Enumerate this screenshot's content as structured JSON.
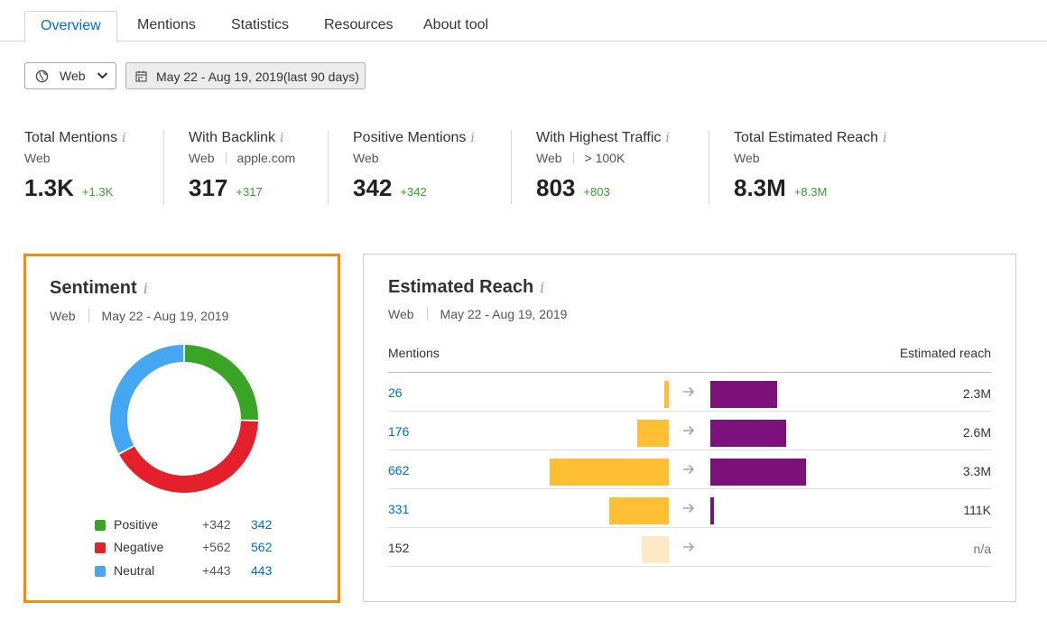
{
  "tabs": [
    {
      "label": "Overview",
      "active": true
    },
    {
      "label": "Mentions",
      "active": false
    },
    {
      "label": "Statistics",
      "active": false
    },
    {
      "label": "Resources",
      "active": false
    },
    {
      "label": "About tool",
      "active": false
    }
  ],
  "filters": {
    "source_value": "Web",
    "date_range": "May 22 - Aug 19, 2019(last 90 days)"
  },
  "stats": [
    {
      "title": "Total Mentions",
      "sub": "Web",
      "sub2": "",
      "value": "1.3K",
      "delta": "+1.3K"
    },
    {
      "title": "With Backlink",
      "sub": "Web",
      "sub2": "apple.com",
      "value": "317",
      "delta": "+317"
    },
    {
      "title": "Positive Mentions",
      "sub": "Web",
      "sub2": "",
      "value": "342",
      "delta": "+342"
    },
    {
      "title": "With Highest Traffic",
      "sub": "Web",
      "sub2": "> 100K",
      "value": "803",
      "delta": "+803"
    },
    {
      "title": "Total Estimated Reach",
      "sub": "Web",
      "sub2": "",
      "value": "8.3M",
      "delta": "+8.3M"
    }
  ],
  "info_glyph": "i",
  "sentiment": {
    "title": "Sentiment",
    "source": "Web",
    "date": "May 22 - Aug 19, 2019",
    "items": [
      {
        "name": "Positive",
        "delta": "+342",
        "count": "342",
        "value": 342,
        "color": "#3aa524"
      },
      {
        "name": "Negative",
        "delta": "+562",
        "count": "562",
        "value": 562,
        "color": "#e3202b"
      },
      {
        "name": "Neutral",
        "delta": "+443",
        "count": "443",
        "value": 443,
        "color": "#45a7f1"
      }
    ]
  },
  "reach": {
    "title": "Estimated Reach",
    "source": "Web",
    "date": "May 22 - Aug 19, 2019",
    "col_mentions": "Mentions",
    "col_reach": "Estimated reach",
    "rows": [
      {
        "mentions": "26",
        "reach": "2.3M",
        "mentions_n": 26,
        "reach_n": 2.3,
        "link": true
      },
      {
        "mentions": "176",
        "reach": "2.6M",
        "mentions_n": 176,
        "reach_n": 2.6,
        "link": true
      },
      {
        "mentions": "662",
        "reach": "3.3M",
        "mentions_n": 662,
        "reach_n": 3.3,
        "link": true
      },
      {
        "mentions": "331",
        "reach": "111K",
        "mentions_n": 331,
        "reach_n": 0.111,
        "link": true
      },
      {
        "mentions": "152",
        "reach": "n/a",
        "mentions_n": 152,
        "reach_n": 0,
        "link": false
      }
    ]
  },
  "colors": {
    "accent": "#006dca",
    "positive_delta": "#3a9b2e",
    "highlight_border": "#ff8a00",
    "mentions_bar": "#ffbf35",
    "mentions_bar_muted": "#fdeac4",
    "reach_bar": "#7c117a"
  }
}
